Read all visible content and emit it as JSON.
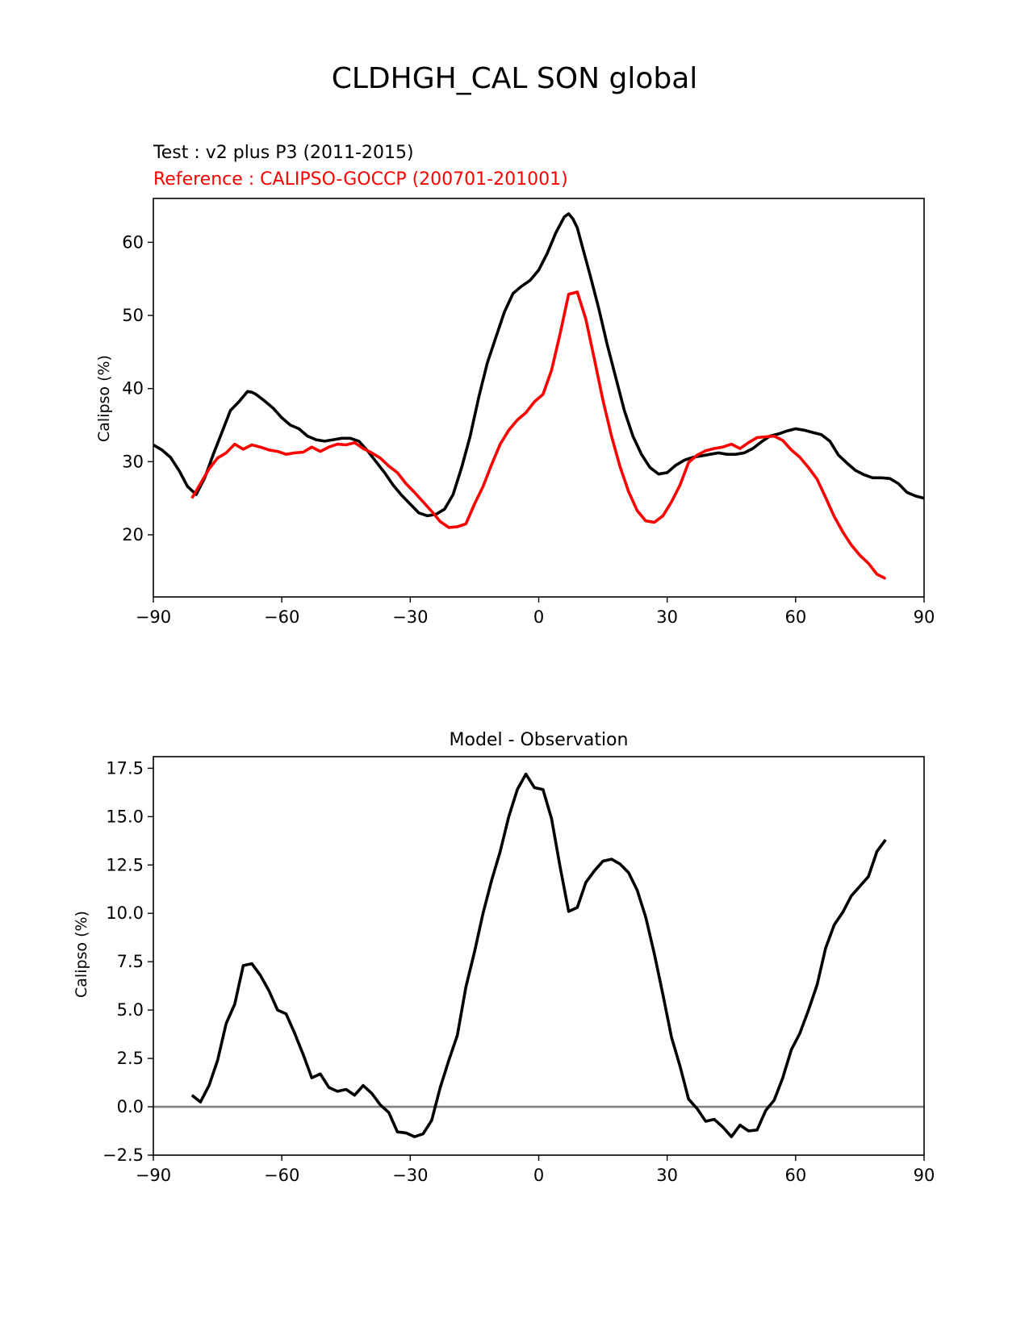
{
  "figure": {
    "title": "CLDHGH_CAL SON global",
    "test_label": "Test : v2 plus P3 (2011-2015)",
    "reference_label": "Reference : CALIPSO-GOCCP (200701-201001)"
  },
  "colors": {
    "test": "#000000",
    "reference": "#ff0000",
    "zero_line": "#808080"
  },
  "chart_data": [
    {
      "type": "line",
      "title": "",
      "xlabel": "",
      "ylabel": "Calipso (%)",
      "xlim": [
        -90,
        90
      ],
      "ylim": [
        11.5,
        66
      ],
      "xticks": [
        -90,
        -60,
        -30,
        0,
        30,
        60,
        90
      ],
      "xtick_labels": [
        "−90",
        "−60",
        "−30",
        "0",
        "30",
        "60",
        "90"
      ],
      "yticks": [
        20,
        30,
        40,
        50,
        60
      ],
      "ytick_labels": [
        "20",
        "30",
        "40",
        "50",
        "60"
      ],
      "grid": false,
      "series": [
        {
          "role": "test",
          "color": "#000000",
          "x": [
            -90,
            -88,
            -86,
            -84,
            -82,
            -80,
            -78,
            -76,
            -74,
            -72,
            -70,
            -68,
            -67,
            -66,
            -64,
            -62,
            -60,
            -58,
            -56,
            -54,
            -52,
            -50,
            -48,
            -46,
            -44,
            -42,
            -40,
            -38,
            -36,
            -34,
            -32,
            -30,
            -28,
            -26,
            -24,
            -22,
            -20,
            -18,
            -16,
            -14,
            -12,
            -10,
            -8,
            -6,
            -4,
            -2,
            0,
            2,
            4,
            6,
            7,
            8,
            9,
            10,
            12,
            14,
            16,
            18,
            20,
            22,
            24,
            26,
            28,
            30,
            32,
            34,
            36,
            38,
            40,
            42,
            44,
            46,
            48,
            50,
            52,
            54,
            56,
            58,
            60,
            62,
            64,
            66,
            68,
            70,
            72,
            74,
            76,
            78,
            80,
            82,
            84,
            86,
            88,
            90
          ],
          "y": [
            32.3,
            31.6,
            30.6,
            28.8,
            26.6,
            25.5,
            27.8,
            31.0,
            34.0,
            37.0,
            38.2,
            39.6,
            39.5,
            39.2,
            38.3,
            37.3,
            36.0,
            35.0,
            34.5,
            33.5,
            33.0,
            32.8,
            33.0,
            33.2,
            33.2,
            32.8,
            31.5,
            30.0,
            28.5,
            26.8,
            25.4,
            24.2,
            23.0,
            22.6,
            22.8,
            23.5,
            25.5,
            29.2,
            33.5,
            38.8,
            43.5,
            47.0,
            50.5,
            53.0,
            54.0,
            54.8,
            56.2,
            58.5,
            61.3,
            63.5,
            63.9,
            63.2,
            62.0,
            59.8,
            55.5,
            51.0,
            46.0,
            41.5,
            37.0,
            33.5,
            31.0,
            29.2,
            28.3,
            28.5,
            29.5,
            30.2,
            30.6,
            30.8,
            31.0,
            31.2,
            31.0,
            31.0,
            31.2,
            31.8,
            32.7,
            33.5,
            33.8,
            34.2,
            34.5,
            34.3,
            34.0,
            33.7,
            32.8,
            30.9,
            29.8,
            28.8,
            28.2,
            27.8,
            27.8,
            27.7,
            27.0,
            25.8,
            25.3,
            25.0
          ]
        },
        {
          "role": "reference",
          "color": "#ff0000",
          "x": [
            -81,
            -79,
            -77,
            -75,
            -73,
            -71,
            -69,
            -67,
            -65,
            -63,
            -61,
            -59,
            -57,
            -55,
            -53,
            -51,
            -49,
            -47,
            -45,
            -43,
            -41,
            -39,
            -37,
            -35,
            -33,
            -31,
            -29,
            -27,
            -25,
            -23,
            -21,
            -19,
            -17,
            -15,
            -13,
            -11,
            -9,
            -7,
            -5,
            -3,
            -1,
            1,
            3,
            5,
            7,
            9,
            11,
            13,
            15,
            17,
            19,
            21,
            23,
            25,
            27,
            29,
            31,
            33,
            35,
            37,
            39,
            41,
            43,
            45,
            47,
            49,
            51,
            53,
            55,
            57,
            59,
            61,
            63,
            65,
            67,
            69,
            71,
            73,
            75,
            77,
            79,
            81
          ],
          "y": [
            25.0,
            27.0,
            29.0,
            30.5,
            31.2,
            32.4,
            31.7,
            32.3,
            32.0,
            31.6,
            31.4,
            31.0,
            31.2,
            31.3,
            32.0,
            31.4,
            32.0,
            32.4,
            32.3,
            32.6,
            31.8,
            31.2,
            30.5,
            29.4,
            28.5,
            27.0,
            25.8,
            24.5,
            23.2,
            21.8,
            21.0,
            21.1,
            21.5,
            24.2,
            26.6,
            29.6,
            32.4,
            34.3,
            35.7,
            36.7,
            38.2,
            39.2,
            42.5,
            47.5,
            52.9,
            53.2,
            49.5,
            44.0,
            38.4,
            33.5,
            29.3,
            25.9,
            23.3,
            21.9,
            21.7,
            22.6,
            24.5,
            26.8,
            29.9,
            30.9,
            31.5,
            31.8,
            32.0,
            32.4,
            31.8,
            32.6,
            33.3,
            33.4,
            33.5,
            32.9,
            31.6,
            30.6,
            29.2,
            27.6,
            25.1,
            22.5,
            20.4,
            18.6,
            17.2,
            16.1,
            14.6,
            14.0
          ]
        }
      ]
    },
    {
      "type": "line",
      "title": "Model - Observation",
      "xlabel": "",
      "ylabel": "Calipso (%)",
      "xlim": [
        -90,
        90
      ],
      "ylim": [
        -2.5,
        18.1
      ],
      "xticks": [
        -90,
        -60,
        -30,
        0,
        30,
        60,
        90
      ],
      "xtick_labels": [
        "−90",
        "−60",
        "−30",
        "0",
        "30",
        "60",
        "90"
      ],
      "yticks": [
        -2.5,
        0.0,
        2.5,
        5.0,
        7.5,
        10.0,
        12.5,
        15.0,
        17.5
      ],
      "ytick_labels": [
        "−2.5",
        "0.0",
        "2.5",
        "5.0",
        "7.5",
        "10.0",
        "12.5",
        "15.0",
        "17.5"
      ],
      "grid": false,
      "zero_line": 0,
      "series": [
        {
          "role": "difference",
          "color": "#000000",
          "x": [
            -81,
            -79,
            -77,
            -75,
            -73,
            -71,
            -69,
            -67,
            -65,
            -63,
            -61,
            -59,
            -57,
            -55,
            -53,
            -51,
            -49,
            -47,
            -45,
            -43,
            -41,
            -39,
            -37,
            -35,
            -33,
            -31,
            -29,
            -27,
            -25,
            -23,
            -21,
            -19,
            -17,
            -15,
            -13,
            -11,
            -9,
            -7,
            -5,
            -3,
            -1,
            1,
            3,
            5,
            7,
            9,
            11,
            13,
            15,
            17,
            19,
            21,
            23,
            25,
            27,
            29,
            31,
            33,
            35,
            37,
            39,
            41,
            43,
            45,
            47,
            49,
            51,
            53,
            55,
            57,
            59,
            61,
            63,
            65,
            67,
            69,
            71,
            73,
            75,
            77,
            79,
            81
          ],
          "y": [
            0.6,
            0.25,
            1.1,
            2.4,
            4.3,
            5.3,
            7.3,
            7.4,
            6.8,
            6.0,
            5.0,
            4.8,
            3.8,
            2.7,
            1.5,
            1.7,
            1.0,
            0.8,
            0.9,
            0.6,
            1.1,
            0.7,
            0.1,
            -0.3,
            -1.3,
            -1.35,
            -1.55,
            -1.4,
            -0.7,
            1.0,
            2.4,
            3.7,
            6.2,
            8.0,
            10.0,
            11.7,
            13.2,
            15.0,
            16.4,
            17.2,
            16.5,
            16.4,
            14.9,
            12.4,
            10.1,
            10.3,
            11.6,
            12.2,
            12.7,
            12.8,
            12.55,
            12.1,
            11.2,
            9.8,
            7.9,
            5.8,
            3.6,
            2.1,
            0.4,
            -0.1,
            -0.75,
            -0.65,
            -1.05,
            -1.55,
            -0.95,
            -1.25,
            -1.2,
            -0.2,
            0.35,
            1.5,
            2.95,
            3.8,
            5.0,
            6.3,
            8.2,
            9.4,
            10.05,
            10.9,
            11.4,
            11.9,
            13.2,
            13.8
          ]
        }
      ]
    }
  ]
}
